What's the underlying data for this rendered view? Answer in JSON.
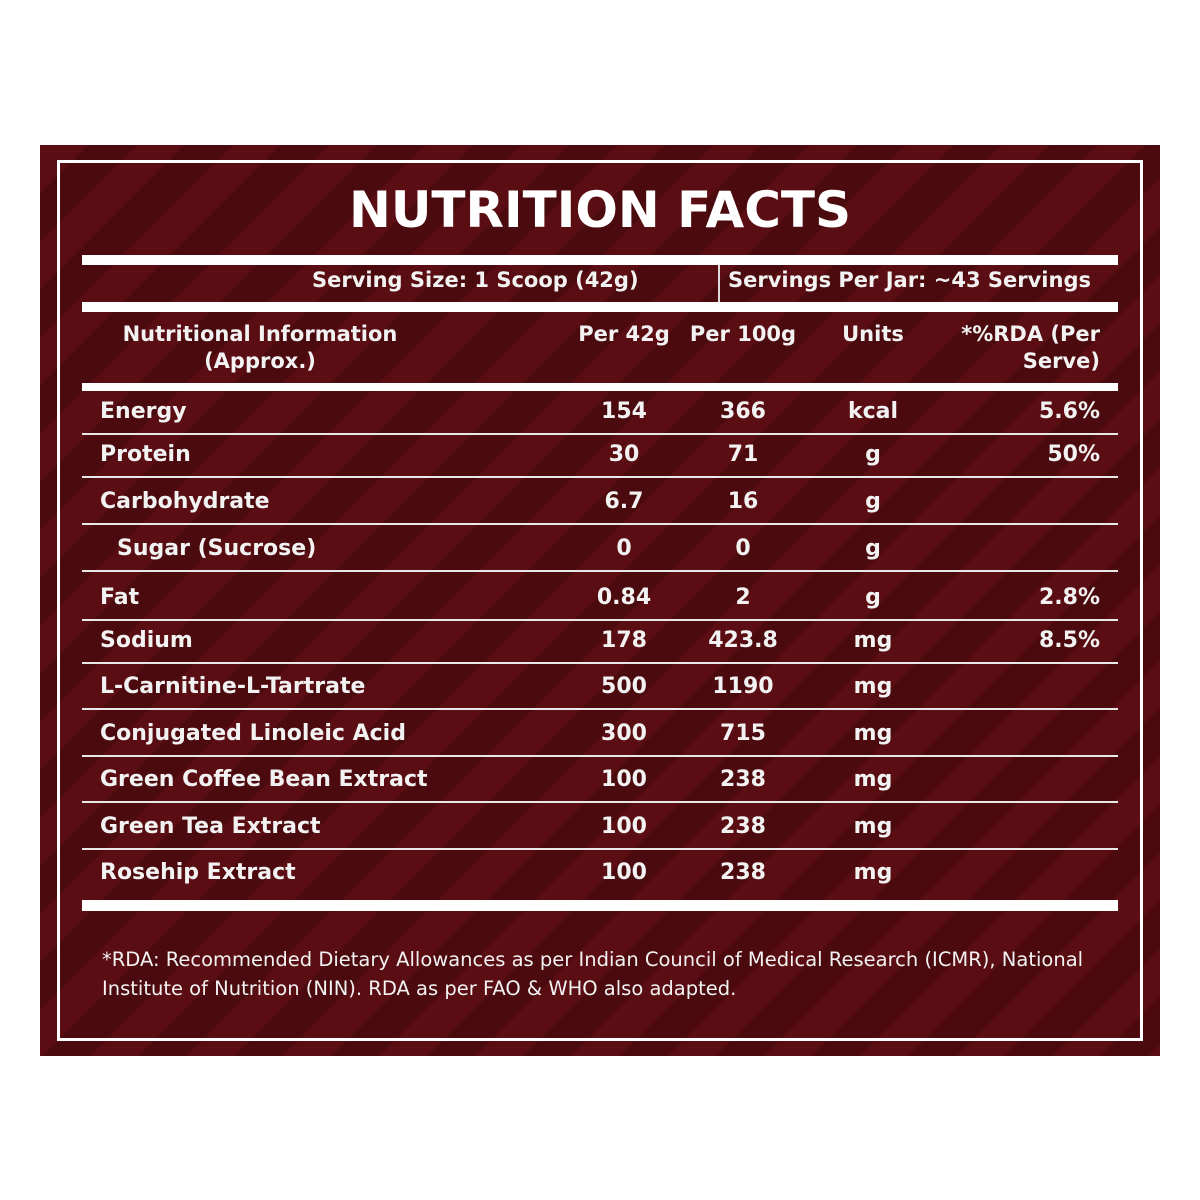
{
  "title": "NUTRITION FACTS",
  "serving": {
    "size": "Serving Size: 1 Scoop (42g)",
    "per_jar": "Servings Per Jar: ~43 Servings"
  },
  "table": {
    "header": [
      "Nutritional Information (Approx.)",
      "Per 42g",
      "Per 100g",
      "Units",
      "*%RDA (Per Serve)"
    ],
    "rows": [
      [
        "Energy",
        "154",
        "366",
        "kcal",
        "5.6%"
      ],
      [
        "Protein",
        "30",
        "71",
        "g",
        "50%"
      ],
      [
        "Carbohydrate",
        "6.7",
        "16",
        "g"
      ],
      [
        "Sugar (Sucrose)",
        "0",
        "0",
        "g"
      ],
      [
        "Fat",
        "0.84",
        "2",
        "g",
        "2.8%"
      ],
      [
        "Sodium",
        "178",
        "423.8",
        "mg",
        "8.5%"
      ],
      [
        "L-Carnitine-L-Tartrate",
        "500",
        "1190",
        "mg"
      ],
      [
        "Conjugated Linoleic Acid",
        "300",
        "715",
        "mg"
      ],
      [
        "Green Coffee Bean Extract",
        "100",
        "238",
        "mg"
      ],
      [
        "Green Tea Extract",
        "100",
        "238",
        "mg"
      ],
      [
        "Rosehip Extract",
        "100",
        "238",
        "mg"
      ]
    ]
  },
  "footnote": "*RDA: Recommended Dietary Allowances as per Indian Council of Medical Research (ICMR), National Institute of Nutrition (NIN). RDA as per FAO & WHO also adapted."
}
